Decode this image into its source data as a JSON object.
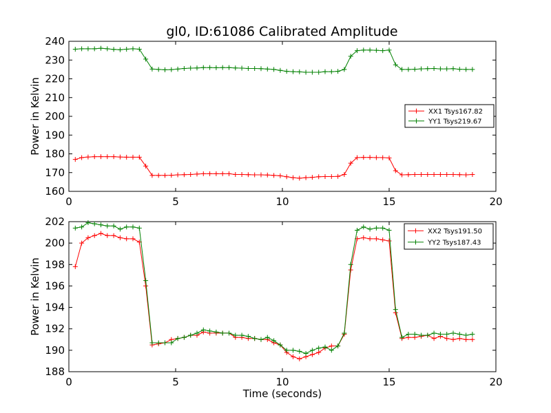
{
  "figure": {
    "title": "gl0, ID:61086 Calibrated Amplitude"
  },
  "chart_data": [
    {
      "type": "line",
      "title": "gl0, ID:61086 Calibrated Amplitude",
      "xlabel": "",
      "ylabel": "Power in Kelvin",
      "xlim": [
        0,
        20
      ],
      "ylim": [
        160,
        240
      ],
      "xticks": [
        0,
        5,
        10,
        15,
        20
      ],
      "yticks": [
        160,
        170,
        180,
        190,
        200,
        210,
        220,
        230,
        240
      ],
      "grid": false,
      "legend_position": "center-right",
      "x": [
        0.3,
        0.6,
        0.9,
        1.2,
        1.5,
        1.8,
        2.1,
        2.4,
        2.7,
        3.0,
        3.3,
        3.6,
        3.9,
        4.2,
        4.5,
        4.8,
        5.1,
        5.4,
        5.7,
        6.0,
        6.3,
        6.6,
        6.9,
        7.2,
        7.5,
        7.8,
        8.1,
        8.4,
        8.7,
        9.0,
        9.3,
        9.6,
        9.9,
        10.2,
        10.5,
        10.8,
        11.1,
        11.4,
        11.7,
        12.0,
        12.3,
        12.6,
        12.9,
        13.2,
        13.5,
        13.8,
        14.1,
        14.4,
        14.7,
        15.0,
        15.3,
        15.6,
        15.9,
        16.2,
        16.5,
        16.8,
        17.1,
        17.4,
        17.7,
        18.0,
        18.3,
        18.6,
        18.9
      ],
      "series": [
        {
          "name": "XX1 Tsys167.82",
          "color": "#ff0000",
          "values": [
            177.0,
            178.0,
            178.3,
            178.5,
            178.5,
            178.5,
            178.5,
            178.3,
            178.2,
            178.2,
            178.2,
            173.5,
            168.5,
            168.5,
            168.5,
            168.6,
            168.8,
            168.9,
            169.0,
            169.2,
            169.4,
            169.4,
            169.4,
            169.4,
            169.4,
            169.0,
            169.0,
            168.9,
            168.8,
            168.8,
            168.7,
            168.5,
            168.3,
            167.8,
            167.3,
            167.0,
            167.3,
            167.5,
            167.8,
            167.9,
            167.9,
            168.0,
            169.0,
            175.0,
            178.0,
            178.1,
            178.1,
            178.0,
            178.0,
            177.8,
            171.0,
            168.8,
            168.9,
            169.0,
            169.0,
            169.0,
            169.0,
            169.0,
            169.0,
            169.0,
            168.9,
            168.8,
            169.0
          ]
        },
        {
          "name": "YY1 Tsys219.67",
          "color": "#008000",
          "values": [
            235.8,
            236.0,
            236.0,
            236.0,
            236.3,
            236.0,
            235.7,
            235.5,
            235.8,
            236.0,
            235.8,
            230.5,
            225.2,
            225.0,
            224.8,
            224.9,
            225.2,
            225.5,
            225.7,
            225.8,
            226.0,
            226.0,
            225.9,
            226.0,
            226.0,
            225.8,
            225.7,
            225.5,
            225.5,
            225.4,
            225.2,
            225.0,
            224.5,
            224.0,
            223.8,
            223.7,
            223.5,
            223.5,
            223.5,
            223.8,
            223.8,
            224.0,
            225.0,
            232.0,
            235.0,
            235.3,
            235.3,
            235.2,
            235.0,
            235.3,
            227.5,
            225.0,
            225.0,
            225.1,
            225.3,
            225.4,
            225.5,
            225.3,
            225.3,
            225.4,
            225.1,
            225.0,
            225.0
          ]
        }
      ]
    },
    {
      "type": "line",
      "title": "",
      "xlabel": "Time (seconds)",
      "ylabel": "Power in Kelvin",
      "xlim": [
        0,
        20
      ],
      "ylim": [
        188,
        202
      ],
      "xticks": [
        0,
        5,
        10,
        15,
        20
      ],
      "yticks": [
        188,
        190,
        192,
        194,
        196,
        198,
        200,
        202
      ],
      "grid": false,
      "legend_position": "top-right",
      "x": [
        0.3,
        0.6,
        0.9,
        1.2,
        1.5,
        1.8,
        2.1,
        2.4,
        2.7,
        3.0,
        3.3,
        3.6,
        3.9,
        4.2,
        4.5,
        4.8,
        5.1,
        5.4,
        5.7,
        6.0,
        6.3,
        6.6,
        6.9,
        7.2,
        7.5,
        7.8,
        8.1,
        8.4,
        8.7,
        9.0,
        9.3,
        9.6,
        9.9,
        10.2,
        10.5,
        10.8,
        11.1,
        11.4,
        11.7,
        12.0,
        12.3,
        12.6,
        12.9,
        13.2,
        13.5,
        13.8,
        14.1,
        14.4,
        14.7,
        15.0,
        15.3,
        15.6,
        15.9,
        16.2,
        16.5,
        16.8,
        17.1,
        17.4,
        17.7,
        18.0,
        18.3,
        18.6,
        18.9
      ],
      "series": [
        {
          "name": "XX2 Tsys191.50",
          "color": "#ff0000",
          "values": [
            197.8,
            200.0,
            200.5,
            200.7,
            200.9,
            200.7,
            200.7,
            200.5,
            200.4,
            200.4,
            200.1,
            196.0,
            190.5,
            190.6,
            190.7,
            191.0,
            191.1,
            191.2,
            191.4,
            191.4,
            191.7,
            191.6,
            191.6,
            191.6,
            191.6,
            191.2,
            191.2,
            191.1,
            191.1,
            191.0,
            191.0,
            190.7,
            190.5,
            189.8,
            189.4,
            189.2,
            189.4,
            189.6,
            189.8,
            190.2,
            190.4,
            190.4,
            191.5,
            197.5,
            200.4,
            200.5,
            200.4,
            200.4,
            200.3,
            200.2,
            193.5,
            191.1,
            191.2,
            191.2,
            191.3,
            191.4,
            191.1,
            191.3,
            191.1,
            191.0,
            191.1,
            191.0,
            191.0
          ]
        },
        {
          "name": "YY2 Tsys187.43",
          "color": "#008000",
          "values": [
            201.4,
            201.5,
            201.9,
            201.8,
            201.7,
            201.6,
            201.6,
            201.3,
            201.5,
            201.5,
            201.4,
            196.5,
            190.7,
            190.7,
            190.7,
            190.7,
            191.1,
            191.2,
            191.4,
            191.6,
            191.9,
            191.8,
            191.7,
            191.6,
            191.6,
            191.4,
            191.4,
            191.3,
            191.1,
            191.0,
            191.2,
            190.9,
            190.5,
            190.0,
            190.0,
            189.9,
            189.7,
            190.0,
            190.2,
            190.3,
            190.0,
            190.4,
            191.6,
            198.0,
            201.2,
            201.5,
            201.3,
            201.4,
            201.4,
            201.2,
            193.8,
            191.2,
            191.5,
            191.5,
            191.4,
            191.4,
            191.6,
            191.5,
            191.5,
            191.6,
            191.5,
            191.4,
            191.5
          ]
        }
      ]
    }
  ]
}
